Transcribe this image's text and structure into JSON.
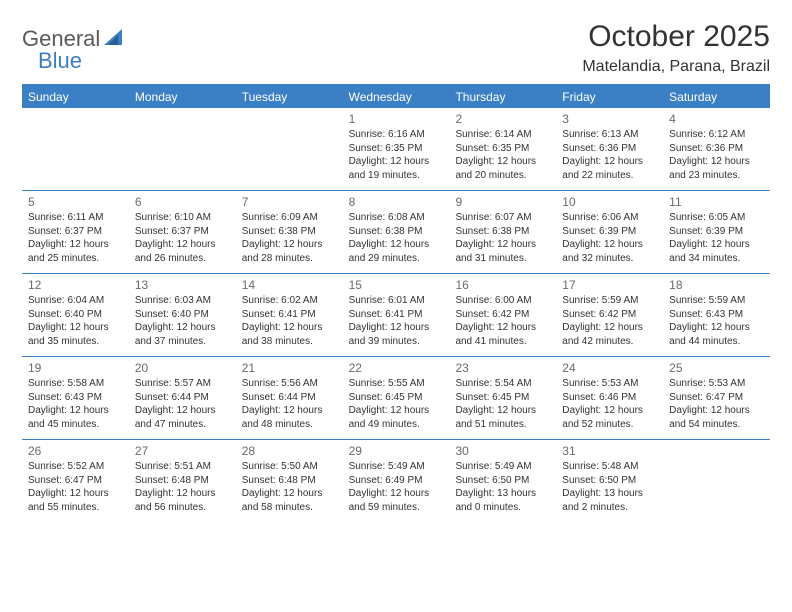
{
  "logo": {
    "text1": "General",
    "text2": "Blue"
  },
  "title": "October 2025",
  "location": "Matelandia, Parana, Brazil",
  "colors": {
    "header_bg": "#3b7fc4",
    "header_text": "#ffffff",
    "border": "#3b7fc4",
    "day_num": "#6a6a6a",
    "body_text": "#333333",
    "logo_gray": "#5a5a5a",
    "logo_blue": "#3b7fc4"
  },
  "day_names": [
    "Sunday",
    "Monday",
    "Tuesday",
    "Wednesday",
    "Thursday",
    "Friday",
    "Saturday"
  ],
  "weeks": [
    [
      {
        "n": "",
        "sr": "",
        "ss": "",
        "dl": ""
      },
      {
        "n": "",
        "sr": "",
        "ss": "",
        "dl": ""
      },
      {
        "n": "",
        "sr": "",
        "ss": "",
        "dl": ""
      },
      {
        "n": "1",
        "sr": "Sunrise: 6:16 AM",
        "ss": "Sunset: 6:35 PM",
        "dl": "Daylight: 12 hours and 19 minutes."
      },
      {
        "n": "2",
        "sr": "Sunrise: 6:14 AM",
        "ss": "Sunset: 6:35 PM",
        "dl": "Daylight: 12 hours and 20 minutes."
      },
      {
        "n": "3",
        "sr": "Sunrise: 6:13 AM",
        "ss": "Sunset: 6:36 PM",
        "dl": "Daylight: 12 hours and 22 minutes."
      },
      {
        "n": "4",
        "sr": "Sunrise: 6:12 AM",
        "ss": "Sunset: 6:36 PM",
        "dl": "Daylight: 12 hours and 23 minutes."
      }
    ],
    [
      {
        "n": "5",
        "sr": "Sunrise: 6:11 AM",
        "ss": "Sunset: 6:37 PM",
        "dl": "Daylight: 12 hours and 25 minutes."
      },
      {
        "n": "6",
        "sr": "Sunrise: 6:10 AM",
        "ss": "Sunset: 6:37 PM",
        "dl": "Daylight: 12 hours and 26 minutes."
      },
      {
        "n": "7",
        "sr": "Sunrise: 6:09 AM",
        "ss": "Sunset: 6:38 PM",
        "dl": "Daylight: 12 hours and 28 minutes."
      },
      {
        "n": "8",
        "sr": "Sunrise: 6:08 AM",
        "ss": "Sunset: 6:38 PM",
        "dl": "Daylight: 12 hours and 29 minutes."
      },
      {
        "n": "9",
        "sr": "Sunrise: 6:07 AM",
        "ss": "Sunset: 6:38 PM",
        "dl": "Daylight: 12 hours and 31 minutes."
      },
      {
        "n": "10",
        "sr": "Sunrise: 6:06 AM",
        "ss": "Sunset: 6:39 PM",
        "dl": "Daylight: 12 hours and 32 minutes."
      },
      {
        "n": "11",
        "sr": "Sunrise: 6:05 AM",
        "ss": "Sunset: 6:39 PM",
        "dl": "Daylight: 12 hours and 34 minutes."
      }
    ],
    [
      {
        "n": "12",
        "sr": "Sunrise: 6:04 AM",
        "ss": "Sunset: 6:40 PM",
        "dl": "Daylight: 12 hours and 35 minutes."
      },
      {
        "n": "13",
        "sr": "Sunrise: 6:03 AM",
        "ss": "Sunset: 6:40 PM",
        "dl": "Daylight: 12 hours and 37 minutes."
      },
      {
        "n": "14",
        "sr": "Sunrise: 6:02 AM",
        "ss": "Sunset: 6:41 PM",
        "dl": "Daylight: 12 hours and 38 minutes."
      },
      {
        "n": "15",
        "sr": "Sunrise: 6:01 AM",
        "ss": "Sunset: 6:41 PM",
        "dl": "Daylight: 12 hours and 39 minutes."
      },
      {
        "n": "16",
        "sr": "Sunrise: 6:00 AM",
        "ss": "Sunset: 6:42 PM",
        "dl": "Daylight: 12 hours and 41 minutes."
      },
      {
        "n": "17",
        "sr": "Sunrise: 5:59 AM",
        "ss": "Sunset: 6:42 PM",
        "dl": "Daylight: 12 hours and 42 minutes."
      },
      {
        "n": "18",
        "sr": "Sunrise: 5:59 AM",
        "ss": "Sunset: 6:43 PM",
        "dl": "Daylight: 12 hours and 44 minutes."
      }
    ],
    [
      {
        "n": "19",
        "sr": "Sunrise: 5:58 AM",
        "ss": "Sunset: 6:43 PM",
        "dl": "Daylight: 12 hours and 45 minutes."
      },
      {
        "n": "20",
        "sr": "Sunrise: 5:57 AM",
        "ss": "Sunset: 6:44 PM",
        "dl": "Daylight: 12 hours and 47 minutes."
      },
      {
        "n": "21",
        "sr": "Sunrise: 5:56 AM",
        "ss": "Sunset: 6:44 PM",
        "dl": "Daylight: 12 hours and 48 minutes."
      },
      {
        "n": "22",
        "sr": "Sunrise: 5:55 AM",
        "ss": "Sunset: 6:45 PM",
        "dl": "Daylight: 12 hours and 49 minutes."
      },
      {
        "n": "23",
        "sr": "Sunrise: 5:54 AM",
        "ss": "Sunset: 6:45 PM",
        "dl": "Daylight: 12 hours and 51 minutes."
      },
      {
        "n": "24",
        "sr": "Sunrise: 5:53 AM",
        "ss": "Sunset: 6:46 PM",
        "dl": "Daylight: 12 hours and 52 minutes."
      },
      {
        "n": "25",
        "sr": "Sunrise: 5:53 AM",
        "ss": "Sunset: 6:47 PM",
        "dl": "Daylight: 12 hours and 54 minutes."
      }
    ],
    [
      {
        "n": "26",
        "sr": "Sunrise: 5:52 AM",
        "ss": "Sunset: 6:47 PM",
        "dl": "Daylight: 12 hours and 55 minutes."
      },
      {
        "n": "27",
        "sr": "Sunrise: 5:51 AM",
        "ss": "Sunset: 6:48 PM",
        "dl": "Daylight: 12 hours and 56 minutes."
      },
      {
        "n": "28",
        "sr": "Sunrise: 5:50 AM",
        "ss": "Sunset: 6:48 PM",
        "dl": "Daylight: 12 hours and 58 minutes."
      },
      {
        "n": "29",
        "sr": "Sunrise: 5:49 AM",
        "ss": "Sunset: 6:49 PM",
        "dl": "Daylight: 12 hours and 59 minutes."
      },
      {
        "n": "30",
        "sr": "Sunrise: 5:49 AM",
        "ss": "Sunset: 6:50 PM",
        "dl": "Daylight: 13 hours and 0 minutes."
      },
      {
        "n": "31",
        "sr": "Sunrise: 5:48 AM",
        "ss": "Sunset: 6:50 PM",
        "dl": "Daylight: 13 hours and 2 minutes."
      },
      {
        "n": "",
        "sr": "",
        "ss": "",
        "dl": ""
      }
    ]
  ]
}
